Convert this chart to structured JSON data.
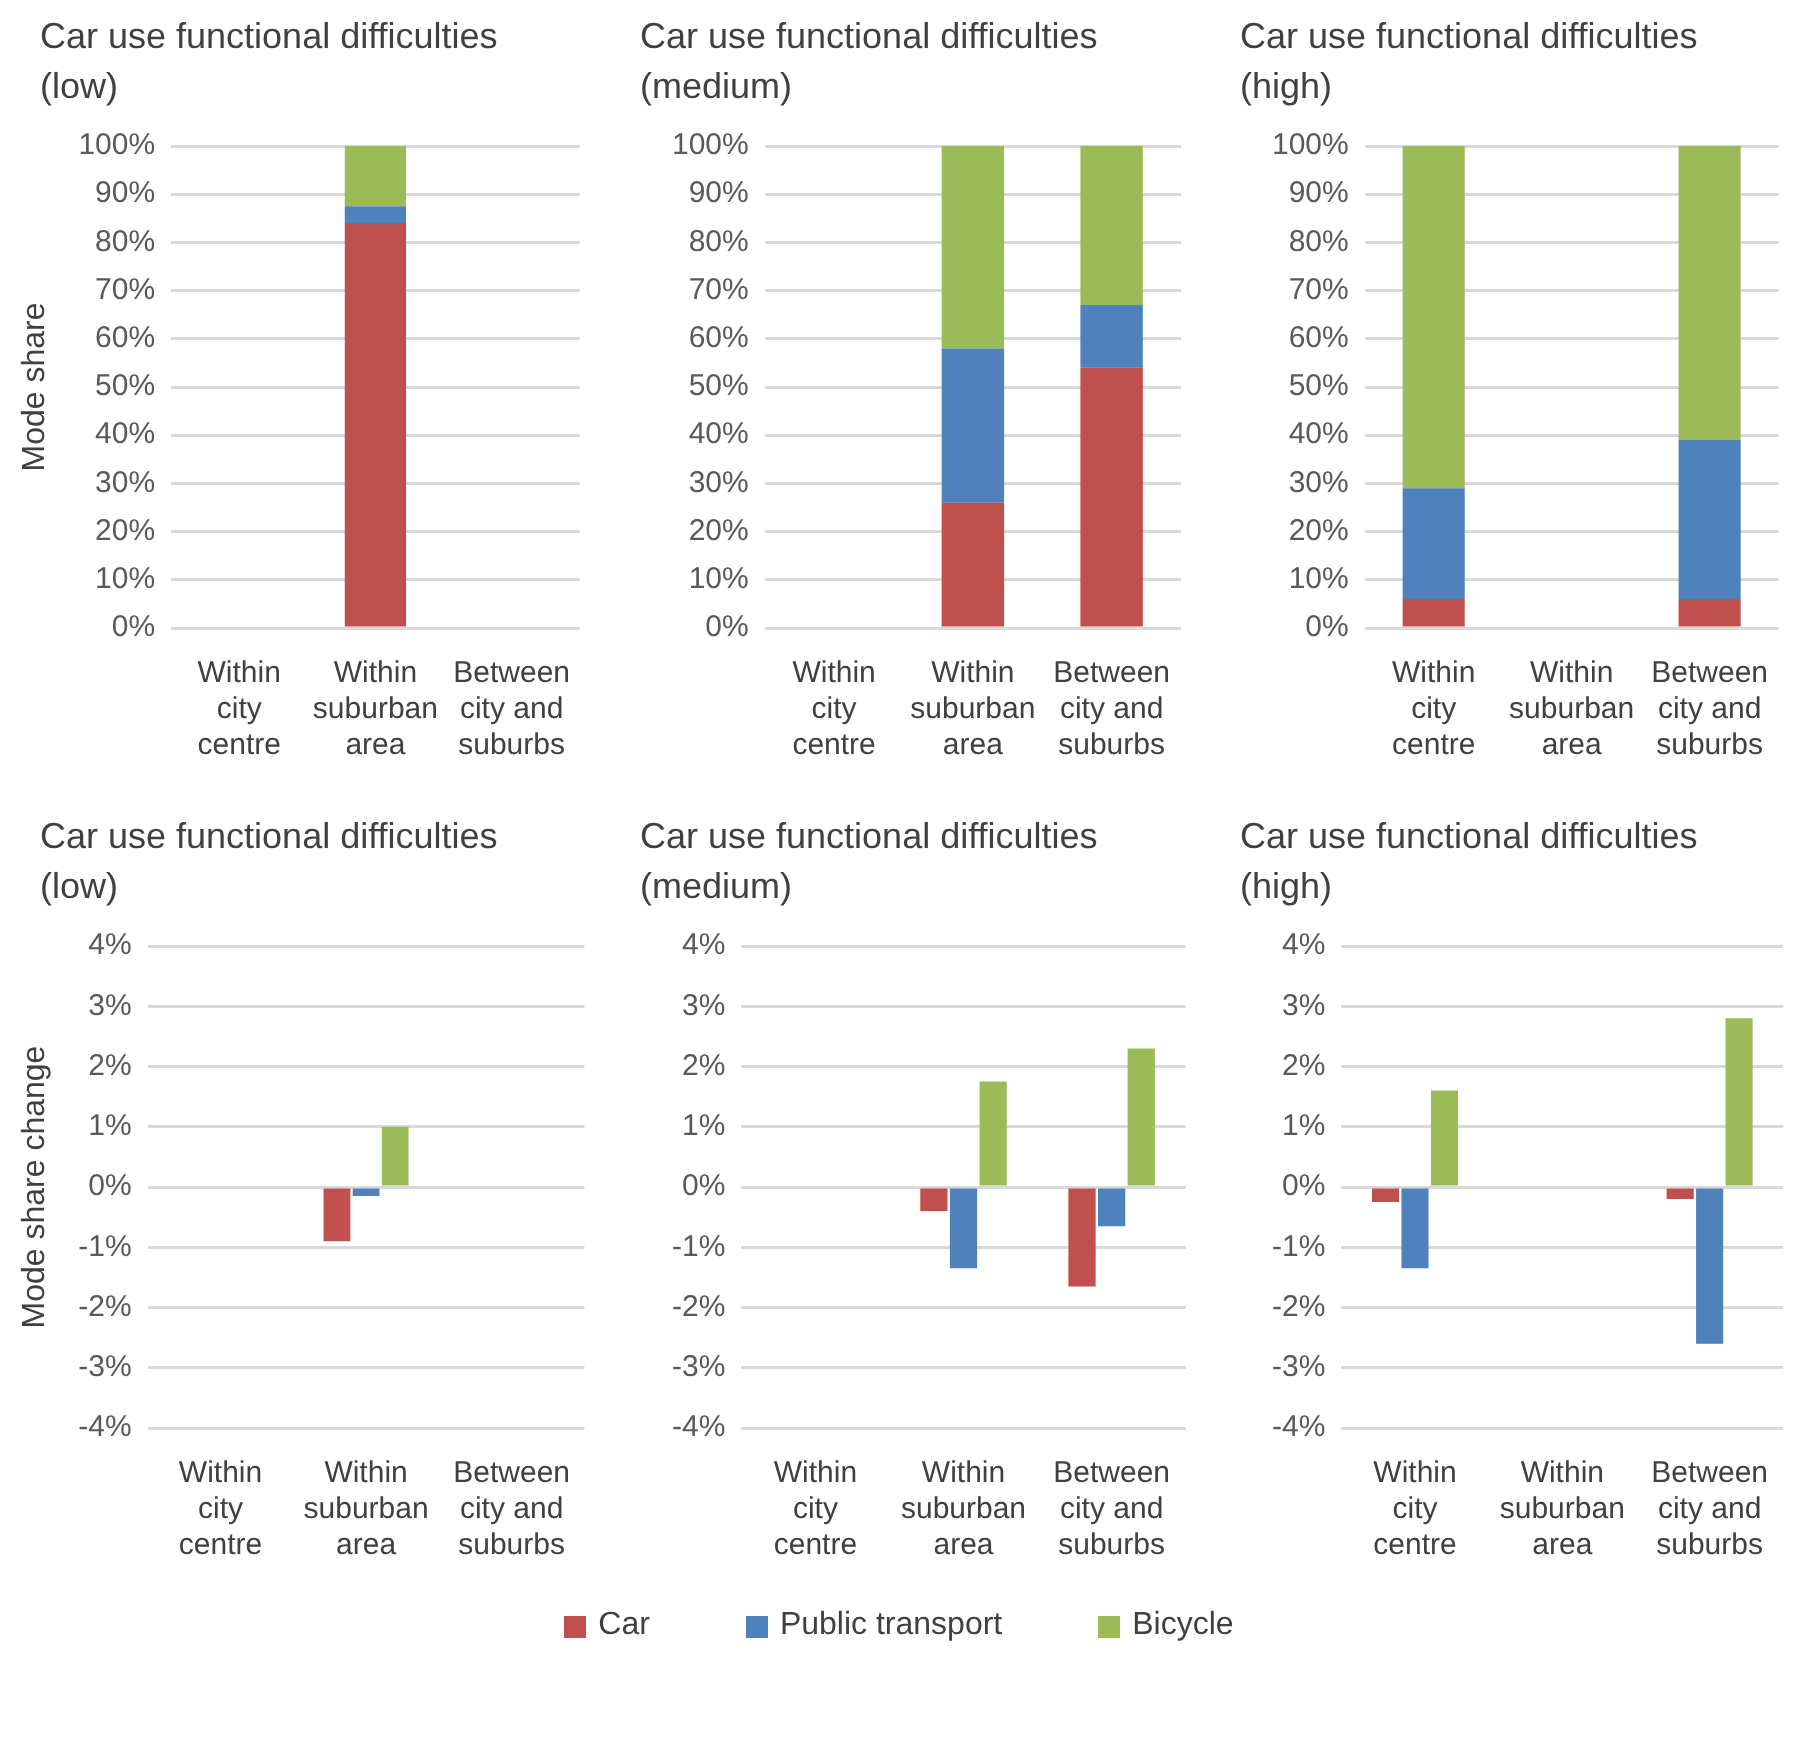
{
  "chart_data": [
    {
      "type": "bar",
      "title": "Car use functional difficulties (low)",
      "ylabel": "Mode share",
      "stacked": true,
      "grid": "y",
      "legend": "bottom",
      "categories": [
        "Within city centre",
        "Within suburban area",
        "Between city and suburbs"
      ],
      "ylim": [
        0,
        100
      ],
      "yticks": [
        {
          "value": 0,
          "label": "0%"
        },
        {
          "value": 10,
          "label": "10%"
        },
        {
          "value": 20,
          "label": "20%"
        },
        {
          "value": 30,
          "label": "30%"
        },
        {
          "value": 40,
          "label": "40%"
        },
        {
          "value": 50,
          "label": "50%"
        },
        {
          "value": 60,
          "label": "60%"
        },
        {
          "value": 70,
          "label": "70%"
        },
        {
          "value": 80,
          "label": "80%"
        },
        {
          "value": 90,
          "label": "90%"
        },
        {
          "value": 100,
          "label": "100%"
        }
      ],
      "series": [
        {
          "name": "Car",
          "color": "#c0504d",
          "values": [
            null,
            84,
            null
          ]
        },
        {
          "name": "Public transport",
          "color": "#4f81bd",
          "values": [
            null,
            3.5,
            null
          ]
        },
        {
          "name": "Bicycle",
          "color": "#9bbb59",
          "values": [
            null,
            12.5,
            null
          ]
        }
      ]
    },
    {
      "type": "bar",
      "title": "Car use functional difficulties (medium)",
      "stacked": true,
      "grid": "y",
      "legend": "bottom",
      "categories": [
        "Within city centre",
        "Within suburban area",
        "Between city and suburbs"
      ],
      "ylim": [
        0,
        100
      ],
      "yticks": [
        {
          "value": 0,
          "label": "0%"
        },
        {
          "value": 10,
          "label": "10%"
        },
        {
          "value": 20,
          "label": "20%"
        },
        {
          "value": 30,
          "label": "30%"
        },
        {
          "value": 40,
          "label": "40%"
        },
        {
          "value": 50,
          "label": "50%"
        },
        {
          "value": 60,
          "label": "60%"
        },
        {
          "value": 70,
          "label": "70%"
        },
        {
          "value": 80,
          "label": "80%"
        },
        {
          "value": 90,
          "label": "90%"
        },
        {
          "value": 100,
          "label": "100%"
        }
      ],
      "series": [
        {
          "name": "Car",
          "color": "#c0504d",
          "values": [
            null,
            26,
            54
          ]
        },
        {
          "name": "Public transport",
          "color": "#4f81bd",
          "values": [
            null,
            32,
            13
          ]
        },
        {
          "name": "Bicycle",
          "color": "#9bbb59",
          "values": [
            null,
            42,
            33
          ]
        }
      ]
    },
    {
      "type": "bar",
      "title": "Car use functional difficulties (high)",
      "stacked": true,
      "grid": "y",
      "legend": "bottom",
      "categories": [
        "Within city centre",
        "Within suburban area",
        "Between city and suburbs"
      ],
      "ylim": [
        0,
        100
      ],
      "yticks": [
        {
          "value": 0,
          "label": "0%"
        },
        {
          "value": 10,
          "label": "10%"
        },
        {
          "value": 20,
          "label": "20%"
        },
        {
          "value": 30,
          "label": "30%"
        },
        {
          "value": 40,
          "label": "40%"
        },
        {
          "value": 50,
          "label": "50%"
        },
        {
          "value": 60,
          "label": "60%"
        },
        {
          "value": 70,
          "label": "70%"
        },
        {
          "value": 80,
          "label": "80%"
        },
        {
          "value": 90,
          "label": "90%"
        },
        {
          "value": 100,
          "label": "100%"
        }
      ],
      "series": [
        {
          "name": "Car",
          "color": "#c0504d",
          "values": [
            6,
            null,
            6
          ]
        },
        {
          "name": "Public transport",
          "color": "#4f81bd",
          "values": [
            23,
            null,
            33
          ]
        },
        {
          "name": "Bicycle",
          "color": "#9bbb59",
          "values": [
            71,
            null,
            61
          ]
        }
      ]
    },
    {
      "type": "bar",
      "title": "Car use functional difficulties (low)",
      "ylabel": "Mode share change",
      "grid": "y",
      "legend": "bottom",
      "categories": [
        "Within city centre",
        "Within suburban area",
        "Between city and suburbs"
      ],
      "ylim": [
        -4,
        4
      ],
      "yticks": [
        {
          "value": -4,
          "label": "-4%"
        },
        {
          "value": -3,
          "label": "-3%"
        },
        {
          "value": -2,
          "label": "-2%"
        },
        {
          "value": -1,
          "label": "-1%"
        },
        {
          "value": 0,
          "label": "0%"
        },
        {
          "value": 1,
          "label": "1%"
        },
        {
          "value": 2,
          "label": "2%"
        },
        {
          "value": 3,
          "label": "3%"
        },
        {
          "value": 4,
          "label": "4%"
        }
      ],
      "series": [
        {
          "name": "Car",
          "color": "#c0504d",
          "values": [
            null,
            -0.9,
            null
          ]
        },
        {
          "name": "Public transport",
          "color": "#4f81bd",
          "values": [
            null,
            -0.15,
            null
          ]
        },
        {
          "name": "Bicycle",
          "color": "#9bbb59",
          "values": [
            null,
            1.0,
            null
          ]
        }
      ]
    },
    {
      "type": "bar",
      "title": "Car use functional difficulties (medium)",
      "grid": "y",
      "legend": "bottom",
      "categories": [
        "Within city centre",
        "Within suburban area",
        "Between city and suburbs"
      ],
      "ylim": [
        -4,
        4
      ],
      "yticks": [
        {
          "value": -4,
          "label": "-4%"
        },
        {
          "value": -3,
          "label": "-3%"
        },
        {
          "value": -2,
          "label": "-2%"
        },
        {
          "value": -1,
          "label": "-1%"
        },
        {
          "value": 0,
          "label": "0%"
        },
        {
          "value": 1,
          "label": "1%"
        },
        {
          "value": 2,
          "label": "2%"
        },
        {
          "value": 3,
          "label": "3%"
        },
        {
          "value": 4,
          "label": "4%"
        }
      ],
      "series": [
        {
          "name": "Car",
          "color": "#c0504d",
          "values": [
            null,
            -0.4,
            -1.65
          ]
        },
        {
          "name": "Public transport",
          "color": "#4f81bd",
          "values": [
            null,
            -1.35,
            -0.65
          ]
        },
        {
          "name": "Bicycle",
          "color": "#9bbb59",
          "values": [
            null,
            1.75,
            2.3
          ]
        }
      ]
    },
    {
      "type": "bar",
      "title": "Car use functional difficulties (high)",
      "grid": "y",
      "legend": "bottom",
      "categories": [
        "Within city centre",
        "Within suburban area",
        "Between city and suburbs"
      ],
      "ylim": [
        -4,
        4
      ],
      "yticks": [
        {
          "value": -4,
          "label": "-4%"
        },
        {
          "value": -3,
          "label": "-3%"
        },
        {
          "value": -2,
          "label": "-2%"
        },
        {
          "value": -1,
          "label": "-1%"
        },
        {
          "value": 0,
          "label": "0%"
        },
        {
          "value": 1,
          "label": "1%"
        },
        {
          "value": 2,
          "label": "2%"
        },
        {
          "value": 3,
          "label": "3%"
        },
        {
          "value": 4,
          "label": "4%"
        }
      ],
      "series": [
        {
          "name": "Car",
          "color": "#c0504d",
          "values": [
            -0.25,
            null,
            -0.2
          ]
        },
        {
          "name": "Public transport",
          "color": "#4f81bd",
          "values": [
            -1.35,
            null,
            -2.6
          ]
        },
        {
          "name": "Bicycle",
          "color": "#9bbb59",
          "values": [
            1.6,
            null,
            2.8
          ]
        }
      ]
    }
  ]
}
